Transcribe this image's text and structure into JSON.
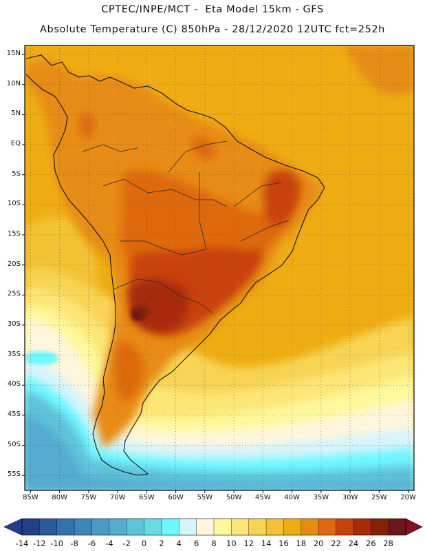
{
  "header": {
    "line1": "CPTEC/INPE/MCT -  Eta Model 15km - GFS",
    "line2": "Absolute Temperature (C) 850hPa - 28/12/2020 12UTC fct=252h"
  },
  "map": {
    "variable": "Absolute Temperature",
    "units": "C",
    "level": "850hPa",
    "lat_labels": [
      "15N",
      "10N",
      "5N",
      "EQ",
      "5S",
      "10S",
      "15S",
      "20S",
      "25S",
      "30S",
      "35S",
      "40S",
      "45S",
      "50S",
      "55S"
    ],
    "lon_labels": [
      "85W",
      "80W",
      "75W",
      "70W",
      "65W",
      "60W",
      "55W",
      "50W",
      "45W",
      "40W",
      "35W",
      "30W",
      "25W",
      "20W"
    ],
    "extent": {
      "lon_min": -86,
      "lon_max": -19,
      "lat_min": -57.5,
      "lat_max": 16.5
    }
  },
  "colorbar": {
    "tick_labels": [
      "-14",
      "-12",
      "-10",
      "-8",
      "-6",
      "-4",
      "-2",
      "0",
      "2",
      "4",
      "6",
      "8",
      "10",
      "12",
      "14",
      "16",
      "18",
      "20",
      "22",
      "24",
      "26",
      "28"
    ],
    "colors": [
      "#233f87",
      "#2b5a9a",
      "#3471ab",
      "#3f86b8",
      "#4b9ac4",
      "#55abd0",
      "#5fc3da",
      "#66dbe5",
      "#6ef7ff",
      "#d6f4fb",
      "#fff6dc",
      "#fff89c",
      "#fde678",
      "#f8d455",
      "#f2c234",
      "#efad14",
      "#e78c12",
      "#de690e",
      "#c8430b",
      "#a72b08",
      "#842208",
      "#6c1717"
    ]
  }
}
